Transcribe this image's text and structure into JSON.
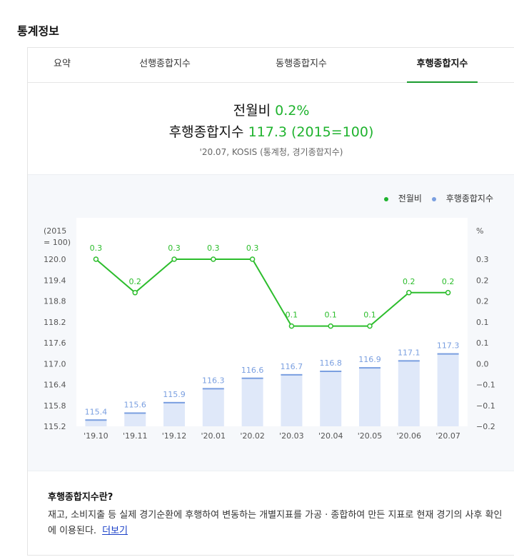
{
  "section_title": "통계정보",
  "tabs": [
    "요약",
    "선행종합지수",
    "동행종합지수",
    "후행종합지수"
  ],
  "active_tab": 3,
  "summary": {
    "mom_label": "전월비",
    "mom_value": "0.2%",
    "index_label": "후행종합지수",
    "index_value": "117.3 (2015=100)",
    "source": "'20.07, KOSIS (통계청, 경기종합지수)"
  },
  "legend": {
    "line": "전월비",
    "bar": "후행종합지수"
  },
  "colors": {
    "line": "#2cbd2c",
    "bar_fill": "#dfe8f9",
    "bar_top": "#7a9fe0",
    "bar_label": "#7a9fe0",
    "line_label": "#2cbd2c",
    "accent": "#1a9c2e"
  },
  "chart_data": {
    "type": "bar+line",
    "categories": [
      "'19.10",
      "'19.11",
      "'19.12",
      "'20.01",
      "'20.02",
      "'20.03",
      "'20.04",
      "'20.05",
      "'20.06",
      "'20.07"
    ],
    "series": [
      {
        "name": "후행종합지수",
        "type": "bar",
        "axis": "left",
        "values": [
          115.4,
          115.6,
          115.9,
          116.3,
          116.6,
          116.7,
          116.8,
          116.9,
          117.1,
          117.3
        ]
      },
      {
        "name": "전월비",
        "type": "line",
        "axis": "right",
        "values": [
          0.3,
          0.2,
          0.3,
          0.3,
          0.3,
          0.1,
          0.1,
          0.1,
          0.2,
          0.2
        ]
      }
    ],
    "left_axis": {
      "label": "(2015\n= 100)",
      "ticks": [
        "120.0",
        "119.4",
        "118.8",
        "118.2",
        "117.6",
        "117.0",
        "116.4",
        "115.8",
        "115.2"
      ],
      "range": [
        115.2,
        120.0
      ]
    },
    "right_axis": {
      "label": "%",
      "ticks": [
        "0.3",
        "0.2",
        "0.2",
        "0.1",
        "0.1",
        "0.0",
        "−0.1",
        "−0.1",
        "−0.2"
      ],
      "range": [
        -0.2,
        0.3
      ]
    },
    "grid": false,
    "legend_position": "top-right"
  },
  "info": {
    "title": "후행종합지수란?",
    "desc": "재고, 소비지출 등 실제 경기순환에 후행하여 변동하는 개별지표를 가공 · 종합하여 만든 지표로 현재 경기의 사후 확인에 이용된다.",
    "more": "더보기"
  }
}
